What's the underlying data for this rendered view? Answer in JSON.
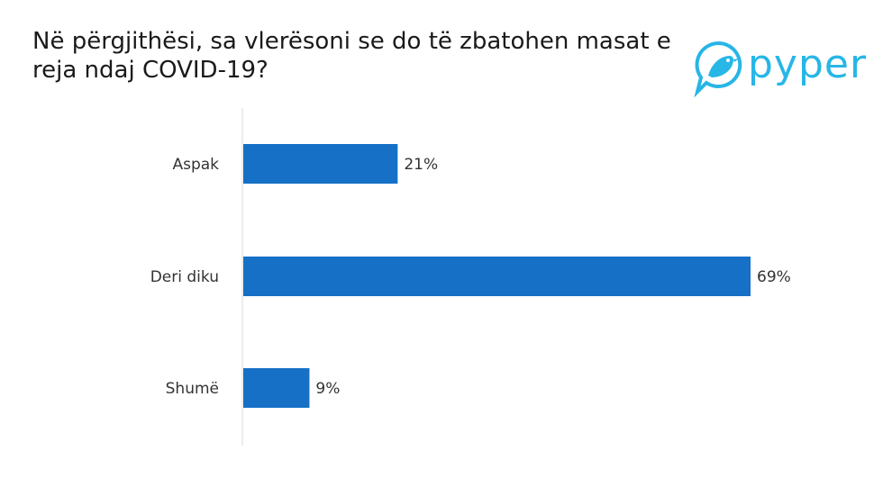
{
  "title": "Në përgjithësi, sa vlerësoni se do të zbatohen masat e reja ndaj COVID-19?",
  "logo": {
    "text": "pyper",
    "icon": "bird-icon",
    "color": "#27b6e6"
  },
  "colors": {
    "bar": "#1570c6",
    "axis": "#d9d9d9"
  },
  "chart_data": {
    "type": "bar",
    "orientation": "horizontal",
    "categories": [
      "Aspak",
      "Deri diku",
      "Shumë"
    ],
    "values": [
      21,
      69,
      9
    ],
    "value_labels": [
      "21%",
      "69%",
      "9%"
    ],
    "xlim": [
      0,
      70
    ],
    "grid": false,
    "legend": "none"
  }
}
